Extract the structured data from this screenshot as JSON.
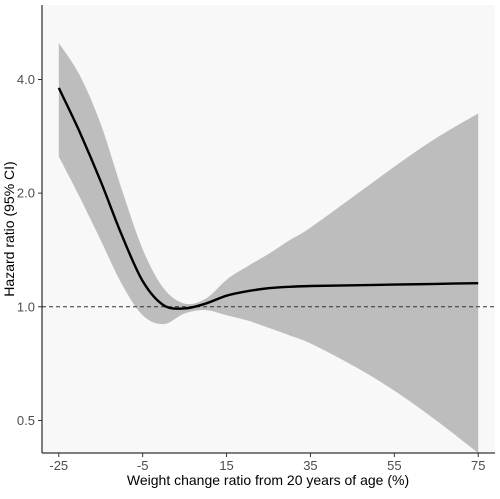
{
  "chart_data": {
    "type": "line",
    "title": "",
    "xlabel": "Weight change ratio from 20 years of age (%)",
    "ylabel": "Hazard ratio (95% CI)",
    "xlim": [
      -29,
      79
    ],
    "ylim": [
      0.41,
      6.3
    ],
    "y_scale": "log",
    "grid": false,
    "x_ticks": [
      -25,
      -5,
      15,
      35,
      55,
      75
    ],
    "x_tick_labels": [
      "-25",
      "-5",
      "15",
      "35",
      "55",
      "75"
    ],
    "y_ticks": [
      0.5,
      1.0,
      2.0,
      4.0
    ],
    "y_tick_labels": [
      "0.5",
      "1.0",
      "2.0",
      "4.0"
    ],
    "reference_line": {
      "y": 1.0,
      "style": "dashed"
    },
    "series": [
      {
        "x": [
          -25,
          -20,
          -15,
          -10,
          -5,
          0,
          5,
          10,
          15,
          20,
          25,
          30,
          35,
          45,
          55,
          65,
          75
        ],
        "y": [
          3.8,
          2.9,
          2.15,
          1.55,
          1.17,
          1.01,
          0.99,
          1.02,
          1.07,
          1.1,
          1.12,
          1.13,
          1.135,
          1.14,
          1.145,
          1.15,
          1.155
        ],
        "lower": [
          2.5,
          1.95,
          1.5,
          1.15,
          0.95,
          0.9,
          0.96,
          0.98,
          0.95,
          0.92,
          0.88,
          0.84,
          0.8,
          0.7,
          0.6,
          0.5,
          0.41
        ],
        "upper": [
          5.0,
          4.1,
          3.05,
          2.05,
          1.42,
          1.12,
          1.02,
          1.05,
          1.18,
          1.28,
          1.38,
          1.5,
          1.62,
          1.95,
          2.35,
          2.8,
          3.25
        ],
        "line_color": "#000000",
        "band_color": "#bdbdbe"
      }
    ],
    "panel_background": "#f8f8f8"
  }
}
